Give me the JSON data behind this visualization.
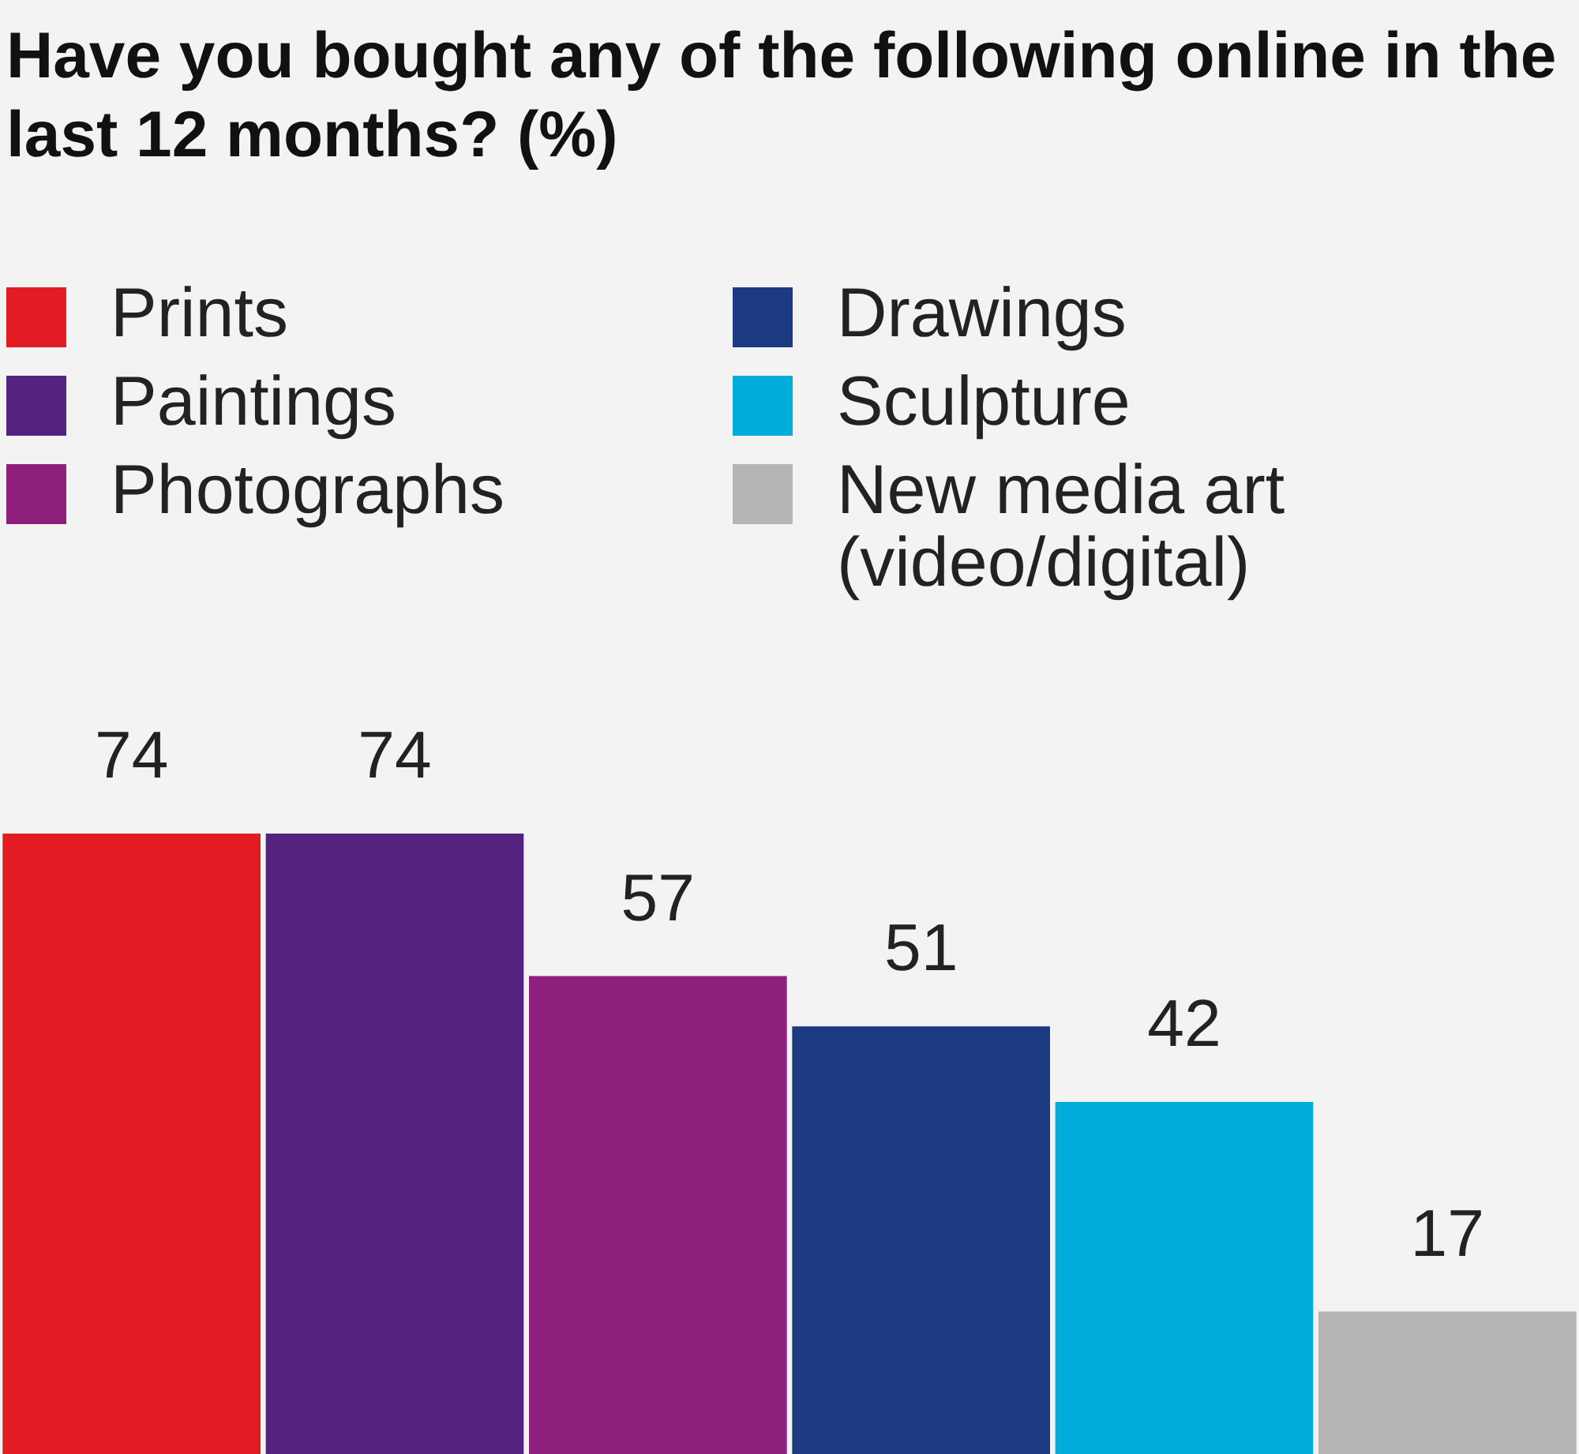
{
  "chart_data": {
    "type": "bar",
    "title": "Have you bought any of the following online in the last 12 months? (%)",
    "categories": [
      null,
      null,
      null,
      null,
      null,
      null
    ],
    "stacked": true,
    "legend": "top",
    "data_labels": true,
    "series": [
      {
        "name": "Prints",
        "color": "#e31b23",
        "values": [
          74,
          null,
          null,
          null,
          null,
          null
        ]
      },
      {
        "name": "Paintings",
        "color": "#55237f",
        "values": [
          null,
          74,
          null,
          null,
          null,
          null
        ]
      },
      {
        "name": "Photographs",
        "color": "#8e1f7c",
        "values": [
          null,
          null,
          57,
          null,
          null,
          null
        ]
      },
      {
        "name": "Drawings",
        "color": "#1b3a82",
        "values": [
          null,
          null,
          null,
          51,
          null,
          null
        ]
      },
      {
        "name": "Sculpture",
        "color": "#00acd9",
        "values": [
          null,
          null,
          null,
          null,
          42,
          null
        ]
      },
      {
        "name": "New media art (video/digital)",
        "color": "#b5b5b5",
        "values": [
          null,
          null,
          null,
          null,
          null,
          17
        ]
      }
    ]
  }
}
